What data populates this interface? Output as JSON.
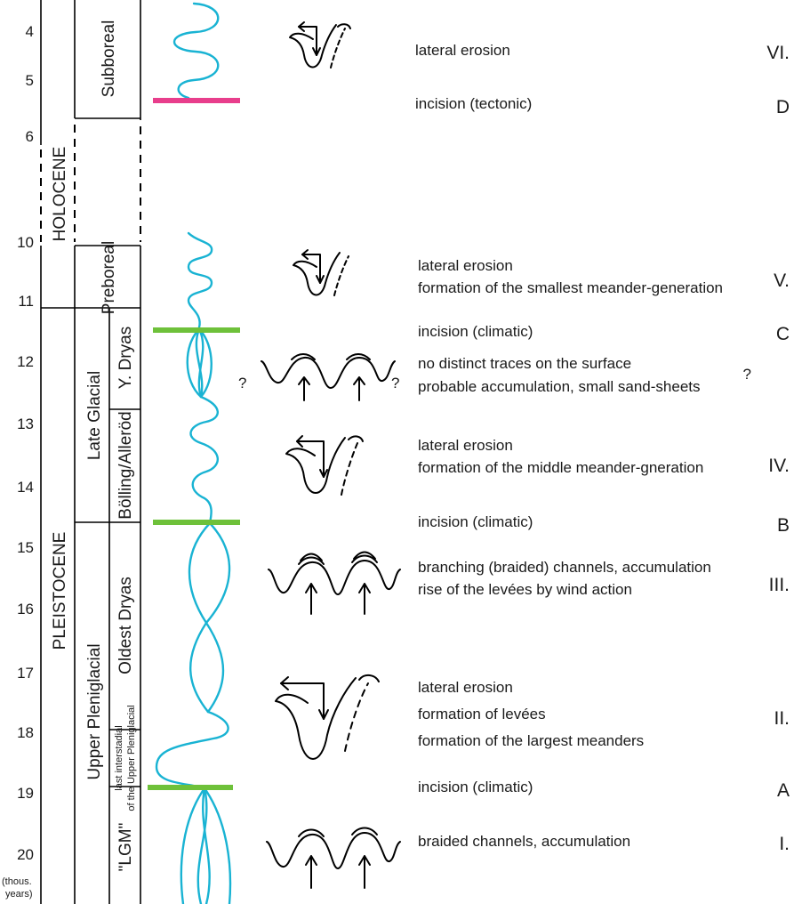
{
  "time_axis": {
    "ticks": [
      "4",
      "5",
      "6",
      "10",
      "11",
      "12",
      "13",
      "14",
      "15",
      "16",
      "17",
      "18",
      "19",
      "20"
    ],
    "unit_line1": "(thous.",
    "unit_line2": "years)"
  },
  "epochs": {
    "holocene": "HOLOCENE",
    "pleistocene": "PLEISTOCENE"
  },
  "stages": {
    "late_glacial": "Late Glacial",
    "upper_pleniglacial": "Upper Pleniglacial"
  },
  "substages": {
    "subboreal": "Subboreal",
    "preboreal": "Preboreal",
    "y_dryas": "Y. Dryas",
    "bolling_allerod": "Bölling/Alleröd",
    "oldest_dryas": "Oldest Dryas",
    "last_interstadial_1": "last interstadial",
    "last_interstadial_2": "of the Upper Pleniglacial",
    "lgm": "\"LGM\""
  },
  "question_mark": "?",
  "events": {
    "vi": {
      "line1": "lateral erosion",
      "code": "VI."
    },
    "d": {
      "line1": "incision (tectonic)",
      "code": "D"
    },
    "v": {
      "line1": "lateral erosion",
      "line2": "formation of the smallest meander-generation",
      "code": "V."
    },
    "c": {
      "line1": "incision (climatic)",
      "code": "C"
    },
    "y": {
      "line1": "no distinct traces on the surface",
      "line2": "probable accumulation, small sand-sheets",
      "code": "?"
    },
    "iv": {
      "line1": "lateral erosion",
      "line2": "formation of the middle meander-gneration",
      "code": "IV."
    },
    "b": {
      "line1": "incision (climatic)",
      "code": "B"
    },
    "iii": {
      "line1": "branching (braided) channels, accumulation",
      "line2": "rise of the levées by wind action",
      "code": "III."
    },
    "ii": {
      "line1": "lateral erosion",
      "line2": "formation of levées",
      "line3": "formation of the largest meanders",
      "code": "II."
    },
    "a": {
      "line1": "incision (climatic)",
      "code": "A"
    },
    "i": {
      "line1": "braided channels, accumulation",
      "code": "I."
    }
  },
  "colors": {
    "river": "#19b3d3",
    "tectonic_incision": "#e83e8c",
    "climatic_incision": "#6ec13a"
  }
}
